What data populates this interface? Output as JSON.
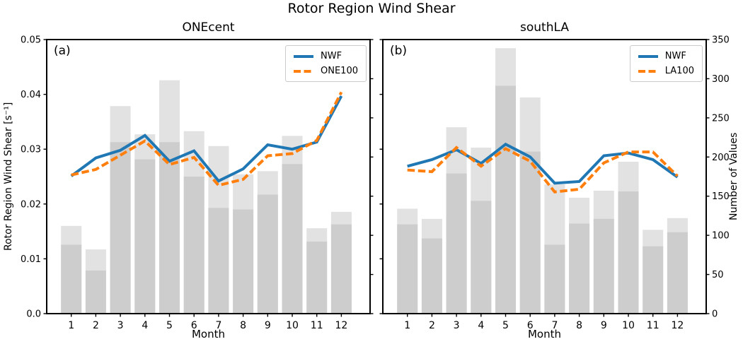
{
  "figure": {
    "title": "Rotor Region Wind Shear",
    "xlabel": "Month",
    "ylabel_left": "Rotor Region Wind Shear [s⁻¹]",
    "ylabel_right": "Number of Values",
    "colors": {
      "nwf": "#1f77b4",
      "scenario": "#ff7f0e",
      "bar_light": "#e2e2e2",
      "bar_overlap": "#cdcdcd",
      "axis": "#000000"
    }
  },
  "chart_data": [
    {
      "type": "bar+line",
      "panel_label": "(a)",
      "title": "ONEcent",
      "x": [
        1,
        2,
        3,
        4,
        5,
        6,
        7,
        8,
        9,
        10,
        11,
        12
      ],
      "xlabel": "Month",
      "ylim_left": [
        0,
        0.05
      ],
      "ylim_right": [
        0,
        350
      ],
      "grid": false,
      "legend_position": "upper right",
      "yticks_left": {
        "values": [
          0,
          0.01,
          0.02,
          0.03,
          0.04,
          0.05
        ],
        "labels": [
          "0.0",
          "0.01",
          "0.02",
          "0.03",
          "0.04",
          "0.05"
        ],
        "show_labels": true
      },
      "yticks_right": {
        "values": [
          0,
          50,
          100,
          150,
          200,
          250,
          300,
          350
        ],
        "labels": [
          "0",
          "50",
          "100",
          "150",
          "200",
          "250",
          "300",
          "350"
        ],
        "show_labels": false
      },
      "series": [
        {
          "name": "NWF",
          "kind": "line",
          "style": "solid",
          "color": "#1f77b4",
          "axis": "left",
          "values": [
            0.0251,
            0.0284,
            0.0298,
            0.0325,
            0.0278,
            0.0297,
            0.0242,
            0.0264,
            0.0308,
            0.03,
            0.0313,
            0.0397
          ]
        },
        {
          "name": "ONE100",
          "kind": "line",
          "style": "dashed",
          "color": "#ff7f0e",
          "axis": "left",
          "values": [
            0.0253,
            0.0263,
            0.0289,
            0.0315,
            0.0272,
            0.0285,
            0.0234,
            0.0245,
            0.0288,
            0.0292,
            0.0316,
            0.0404
          ]
        },
        {
          "name": "count-high",
          "kind": "bar",
          "color": "#e2e2e2",
          "axis": "right",
          "values": [
            112,
            82,
            265,
            229,
            298,
            233,
            214,
            178,
            182,
            227,
            109,
            130
          ]
        },
        {
          "name": "count-overlap",
          "kind": "bar",
          "color": "#cdcdcd",
          "axis": "right",
          "values": [
            88,
            55,
            219,
            197,
            219,
            175,
            135,
            133,
            152,
            191,
            92,
            114
          ]
        }
      ],
      "legend": [
        "NWF",
        "ONE100"
      ]
    },
    {
      "type": "bar+line",
      "panel_label": "(b)",
      "title": "southLA",
      "x": [
        1,
        2,
        3,
        4,
        5,
        6,
        7,
        8,
        9,
        10,
        11,
        12
      ],
      "xlabel": "Month",
      "ylim_left": [
        0,
        0.05
      ],
      "ylim_right": [
        0,
        350
      ],
      "grid": false,
      "legend_position": "upper right",
      "yticks_left": {
        "values": [
          0,
          0.01,
          0.02,
          0.03,
          0.04,
          0.05
        ],
        "labels": [
          "0.0",
          "0.01",
          "0.02",
          "0.03",
          "0.04",
          "0.05"
        ],
        "show_labels": false
      },
      "yticks_right": {
        "values": [
          0,
          50,
          100,
          150,
          200,
          250,
          300,
          350
        ],
        "labels": [
          "0",
          "50",
          "100",
          "150",
          "200",
          "250",
          "300",
          "350"
        ],
        "show_labels": true
      },
      "series": [
        {
          "name": "NWF",
          "kind": "line",
          "style": "solid",
          "color": "#1f77b4",
          "axis": "left",
          "values": [
            0.0269,
            0.0281,
            0.0299,
            0.0274,
            0.0309,
            0.0286,
            0.0238,
            0.0241,
            0.0288,
            0.0293,
            0.0281,
            0.0249
          ]
        },
        {
          "name": "LA100",
          "kind": "line",
          "style": "dashed",
          "color": "#ff7f0e",
          "axis": "left",
          "values": [
            0.0262,
            0.0259,
            0.0303,
            0.0269,
            0.0301,
            0.0278,
            0.0222,
            0.0227,
            0.0275,
            0.0295,
            0.0295,
            0.0251
          ]
        },
        {
          "name": "count-high",
          "kind": "bar",
          "color": "#e2e2e2",
          "axis": "right",
          "values": [
            134,
            121,
            238,
            212,
            339,
            276,
            165,
            148,
            157,
            194,
            107,
            122
          ]
        },
        {
          "name": "count-overlap",
          "kind": "bar",
          "color": "#cdcdcd",
          "axis": "right",
          "values": [
            114,
            96,
            179,
            144,
            291,
            207,
            88,
            115,
            121,
            156,
            86,
            104
          ]
        }
      ],
      "legend": [
        "NWF",
        "LA100"
      ]
    }
  ]
}
